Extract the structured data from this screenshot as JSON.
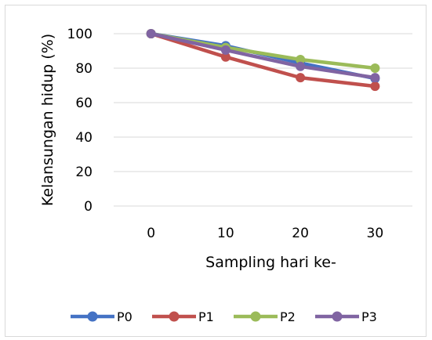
{
  "chart_data": {
    "type": "line",
    "categories": [
      "0",
      "10",
      "20",
      "30"
    ],
    "series": [
      {
        "name": "P0",
        "values": [
          100,
          93,
          83,
          74
        ],
        "color": "#4472C4"
      },
      {
        "name": "P1",
        "values": [
          100,
          86.5,
          74.5,
          69.5
        ],
        "color": "#C0504D"
      },
      {
        "name": "P2",
        "values": [
          100,
          92,
          85,
          80
        ],
        "color": "#9BBB59"
      },
      {
        "name": "P3",
        "values": [
          100,
          90.5,
          81,
          74.5
        ],
        "color": "#8064A2"
      }
    ],
    "xlabel": "Sampling hari ke-",
    "ylabel": "Kelansungan hidup (%)",
    "ylim": [
      0,
      100
    ],
    "yticks": [
      "0",
      "20",
      "40",
      "60",
      "80",
      "100"
    ],
    "grid": true,
    "legend_position": "bottom"
  }
}
